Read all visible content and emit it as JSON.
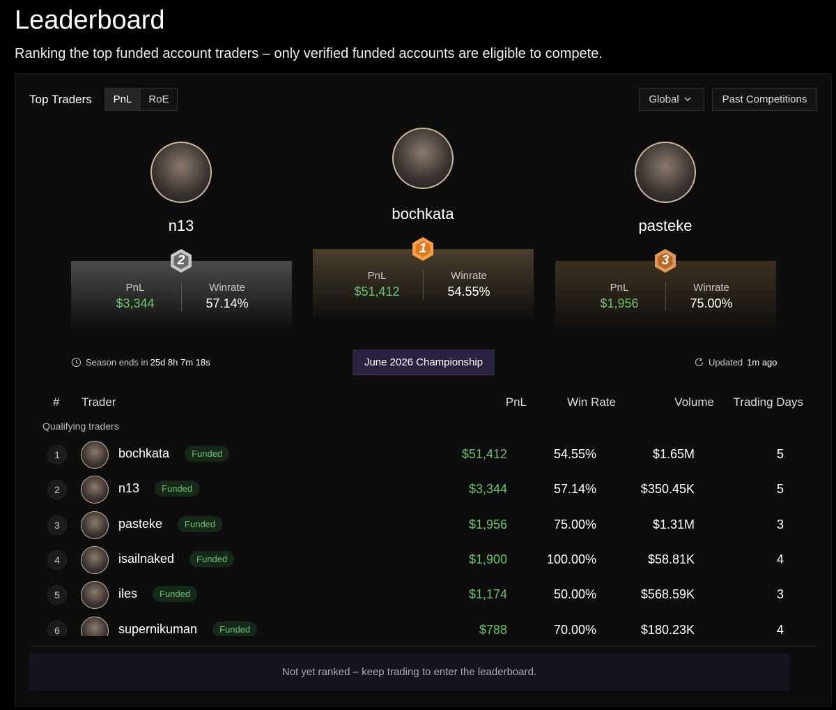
{
  "header": {
    "title": "Leaderboard",
    "subtitle": "Ranking the top funded account traders – only verified funded accounts are eligible to compete."
  },
  "toolbar": {
    "title": "Top Traders",
    "tabs": [
      "PnL",
      "RoE"
    ],
    "region": "Global",
    "past": "Past Competitions"
  },
  "podium": [
    {
      "rank": "2",
      "name": "n13",
      "pnl_label": "PnL",
      "pnl": "$3,344",
      "winrate_label": "Winrate",
      "winrate": "57.14%"
    },
    {
      "rank": "1",
      "name": "bochkata",
      "pnl_label": "PnL",
      "pnl": "$51,412",
      "winrate_label": "Winrate",
      "winrate": "54.55%"
    },
    {
      "rank": "3",
      "name": "pasteke",
      "pnl_label": "PnL",
      "pnl": "$1,956",
      "winrate_label": "Winrate",
      "winrate": "75.00%"
    }
  ],
  "season": {
    "prefix": "Season ends in",
    "time": "25d 8h 7m 18s"
  },
  "competition": "June 2026 Championship",
  "updated": {
    "label": "Updated",
    "time": "1m ago"
  },
  "table": {
    "columns": [
      "#",
      "Trader",
      "PnL",
      "Win Rate",
      "Volume",
      "Trading Days"
    ],
    "section": "Qualifying traders",
    "rows": [
      [
        "1",
        "bochkata",
        "Funded",
        "$51,412",
        "54.55%",
        "$1.65M",
        "5"
      ],
      [
        "2",
        "n13",
        "Funded",
        "$3,344",
        "57.14%",
        "$350.45K",
        "5"
      ],
      [
        "3",
        "pasteke",
        "Funded",
        "$1,956",
        "75.00%",
        "$1.31M",
        "3"
      ],
      [
        "4",
        "isailnaked",
        "Funded",
        "$1,900",
        "100.00%",
        "$58.81K",
        "4"
      ],
      [
        "5",
        "iles",
        "Funded",
        "$1,174",
        "50.00%",
        "$568.59K",
        "3"
      ],
      [
        "6",
        "supernikuman",
        "Funded",
        "$788",
        "70.00%",
        "$180.23K",
        "4"
      ]
    ]
  },
  "footer": "Not yet ranked – keep trading to enter the leaderboard."
}
